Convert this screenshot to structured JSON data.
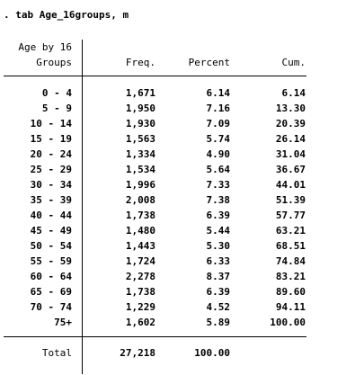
{
  "command": ". tab Age_16groups, m",
  "header": {
    "var_line1": "Age by 16",
    "var_line2": "Groups",
    "freq": "Freq.",
    "percent": "Percent",
    "cum": "Cum."
  },
  "rows": [
    {
      "label": "0 - 4",
      "freq": "1,671",
      "percent": "6.14",
      "cum": "6.14"
    },
    {
      "label": "5 - 9",
      "freq": "1,950",
      "percent": "7.16",
      "cum": "13.30"
    },
    {
      "label": "10 - 14",
      "freq": "1,930",
      "percent": "7.09",
      "cum": "20.39"
    },
    {
      "label": "15 - 19",
      "freq": "1,563",
      "percent": "5.74",
      "cum": "26.14"
    },
    {
      "label": "20 - 24",
      "freq": "1,334",
      "percent": "4.90",
      "cum": "31.04"
    },
    {
      "label": "25 - 29",
      "freq": "1,534",
      "percent": "5.64",
      "cum": "36.67"
    },
    {
      "label": "30 - 34",
      "freq": "1,996",
      "percent": "7.33",
      "cum": "44.01"
    },
    {
      "label": "35 - 39",
      "freq": "2,008",
      "percent": "7.38",
      "cum": "51.39"
    },
    {
      "label": "40 - 44",
      "freq": "1,738",
      "percent": "6.39",
      "cum": "57.77"
    },
    {
      "label": "45 - 49",
      "freq": "1,480",
      "percent": "5.44",
      "cum": "63.21"
    },
    {
      "label": "50 - 54",
      "freq": "1,443",
      "percent": "5.30",
      "cum": "68.51"
    },
    {
      "label": "55 - 59",
      "freq": "1,724",
      "percent": "6.33",
      "cum": "74.84"
    },
    {
      "label": "60 - 64",
      "freq": "2,278",
      "percent": "8.37",
      "cum": "83.21"
    },
    {
      "label": "65 - 69",
      "freq": "1,738",
      "percent": "6.39",
      "cum": "89.60"
    },
    {
      "label": "70 - 74",
      "freq": "1,229",
      "percent": "4.52",
      "cum": "94.11"
    },
    {
      "label": "75+",
      "freq": "1,602",
      "percent": "5.89",
      "cum": "100.00"
    }
  ],
  "total": {
    "label": "Total",
    "freq": "27,218",
    "percent": "100.00"
  }
}
